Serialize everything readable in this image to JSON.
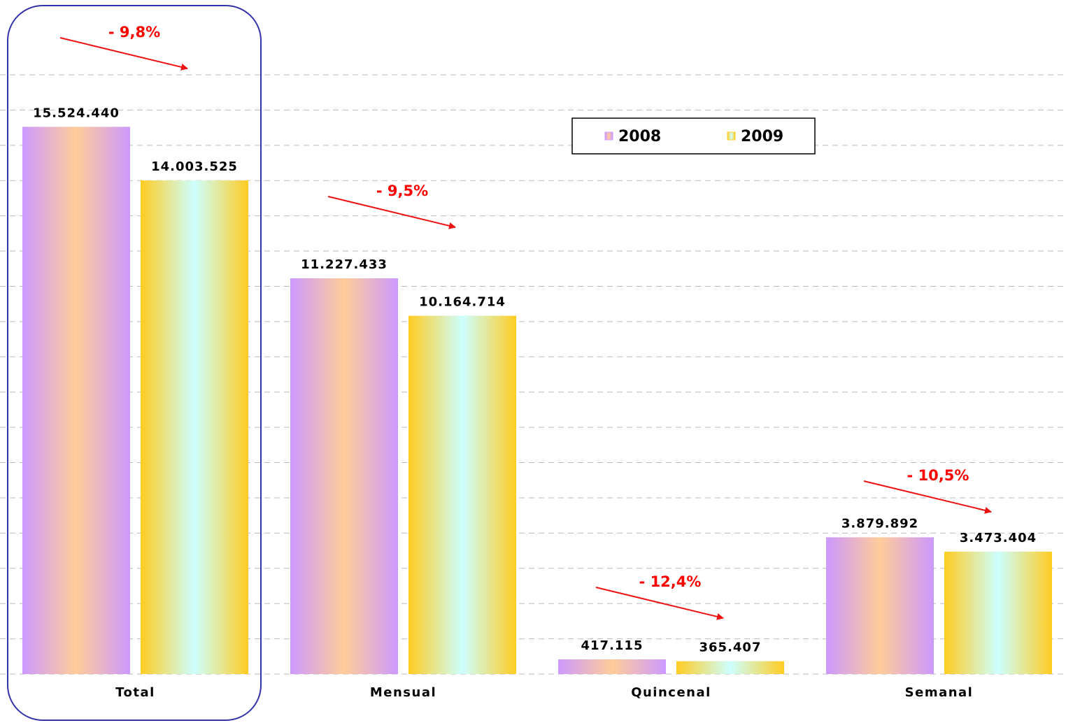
{
  "chart_data": {
    "type": "bar",
    "categories": [
      "Total",
      "Mensual",
      "Quincenal",
      "Semanal"
    ],
    "series": [
      {
        "name": "2008",
        "color": "#cc99ff",
        "values": [
          15524440,
          11227433,
          417115,
          3879892
        ],
        "value_labels": [
          "15.524.440",
          "11.227.433",
          "417.115",
          "3.879.892"
        ]
      },
      {
        "name": "2009",
        "color": "#ffcc22",
        "values": [
          14003525,
          10164714,
          365407,
          3473404
        ],
        "value_labels": [
          "14.003.525",
          "10.164.714",
          "365.407",
          "3.473.404"
        ]
      }
    ],
    "annotations": [
      "- 9,8%",
      "- 9,5%",
      "- 12,4%",
      "- 10,5%"
    ],
    "ylim": [
      0,
      17000000
    ],
    "yticks": [
      0,
      1000000,
      2000000,
      3000000,
      4000000,
      5000000,
      6000000,
      7000000,
      8000000,
      9000000,
      10000000,
      11000000,
      12000000,
      13000000,
      14000000,
      15000000,
      16000000,
      17000000
    ],
    "grid": true,
    "legend": "top"
  }
}
